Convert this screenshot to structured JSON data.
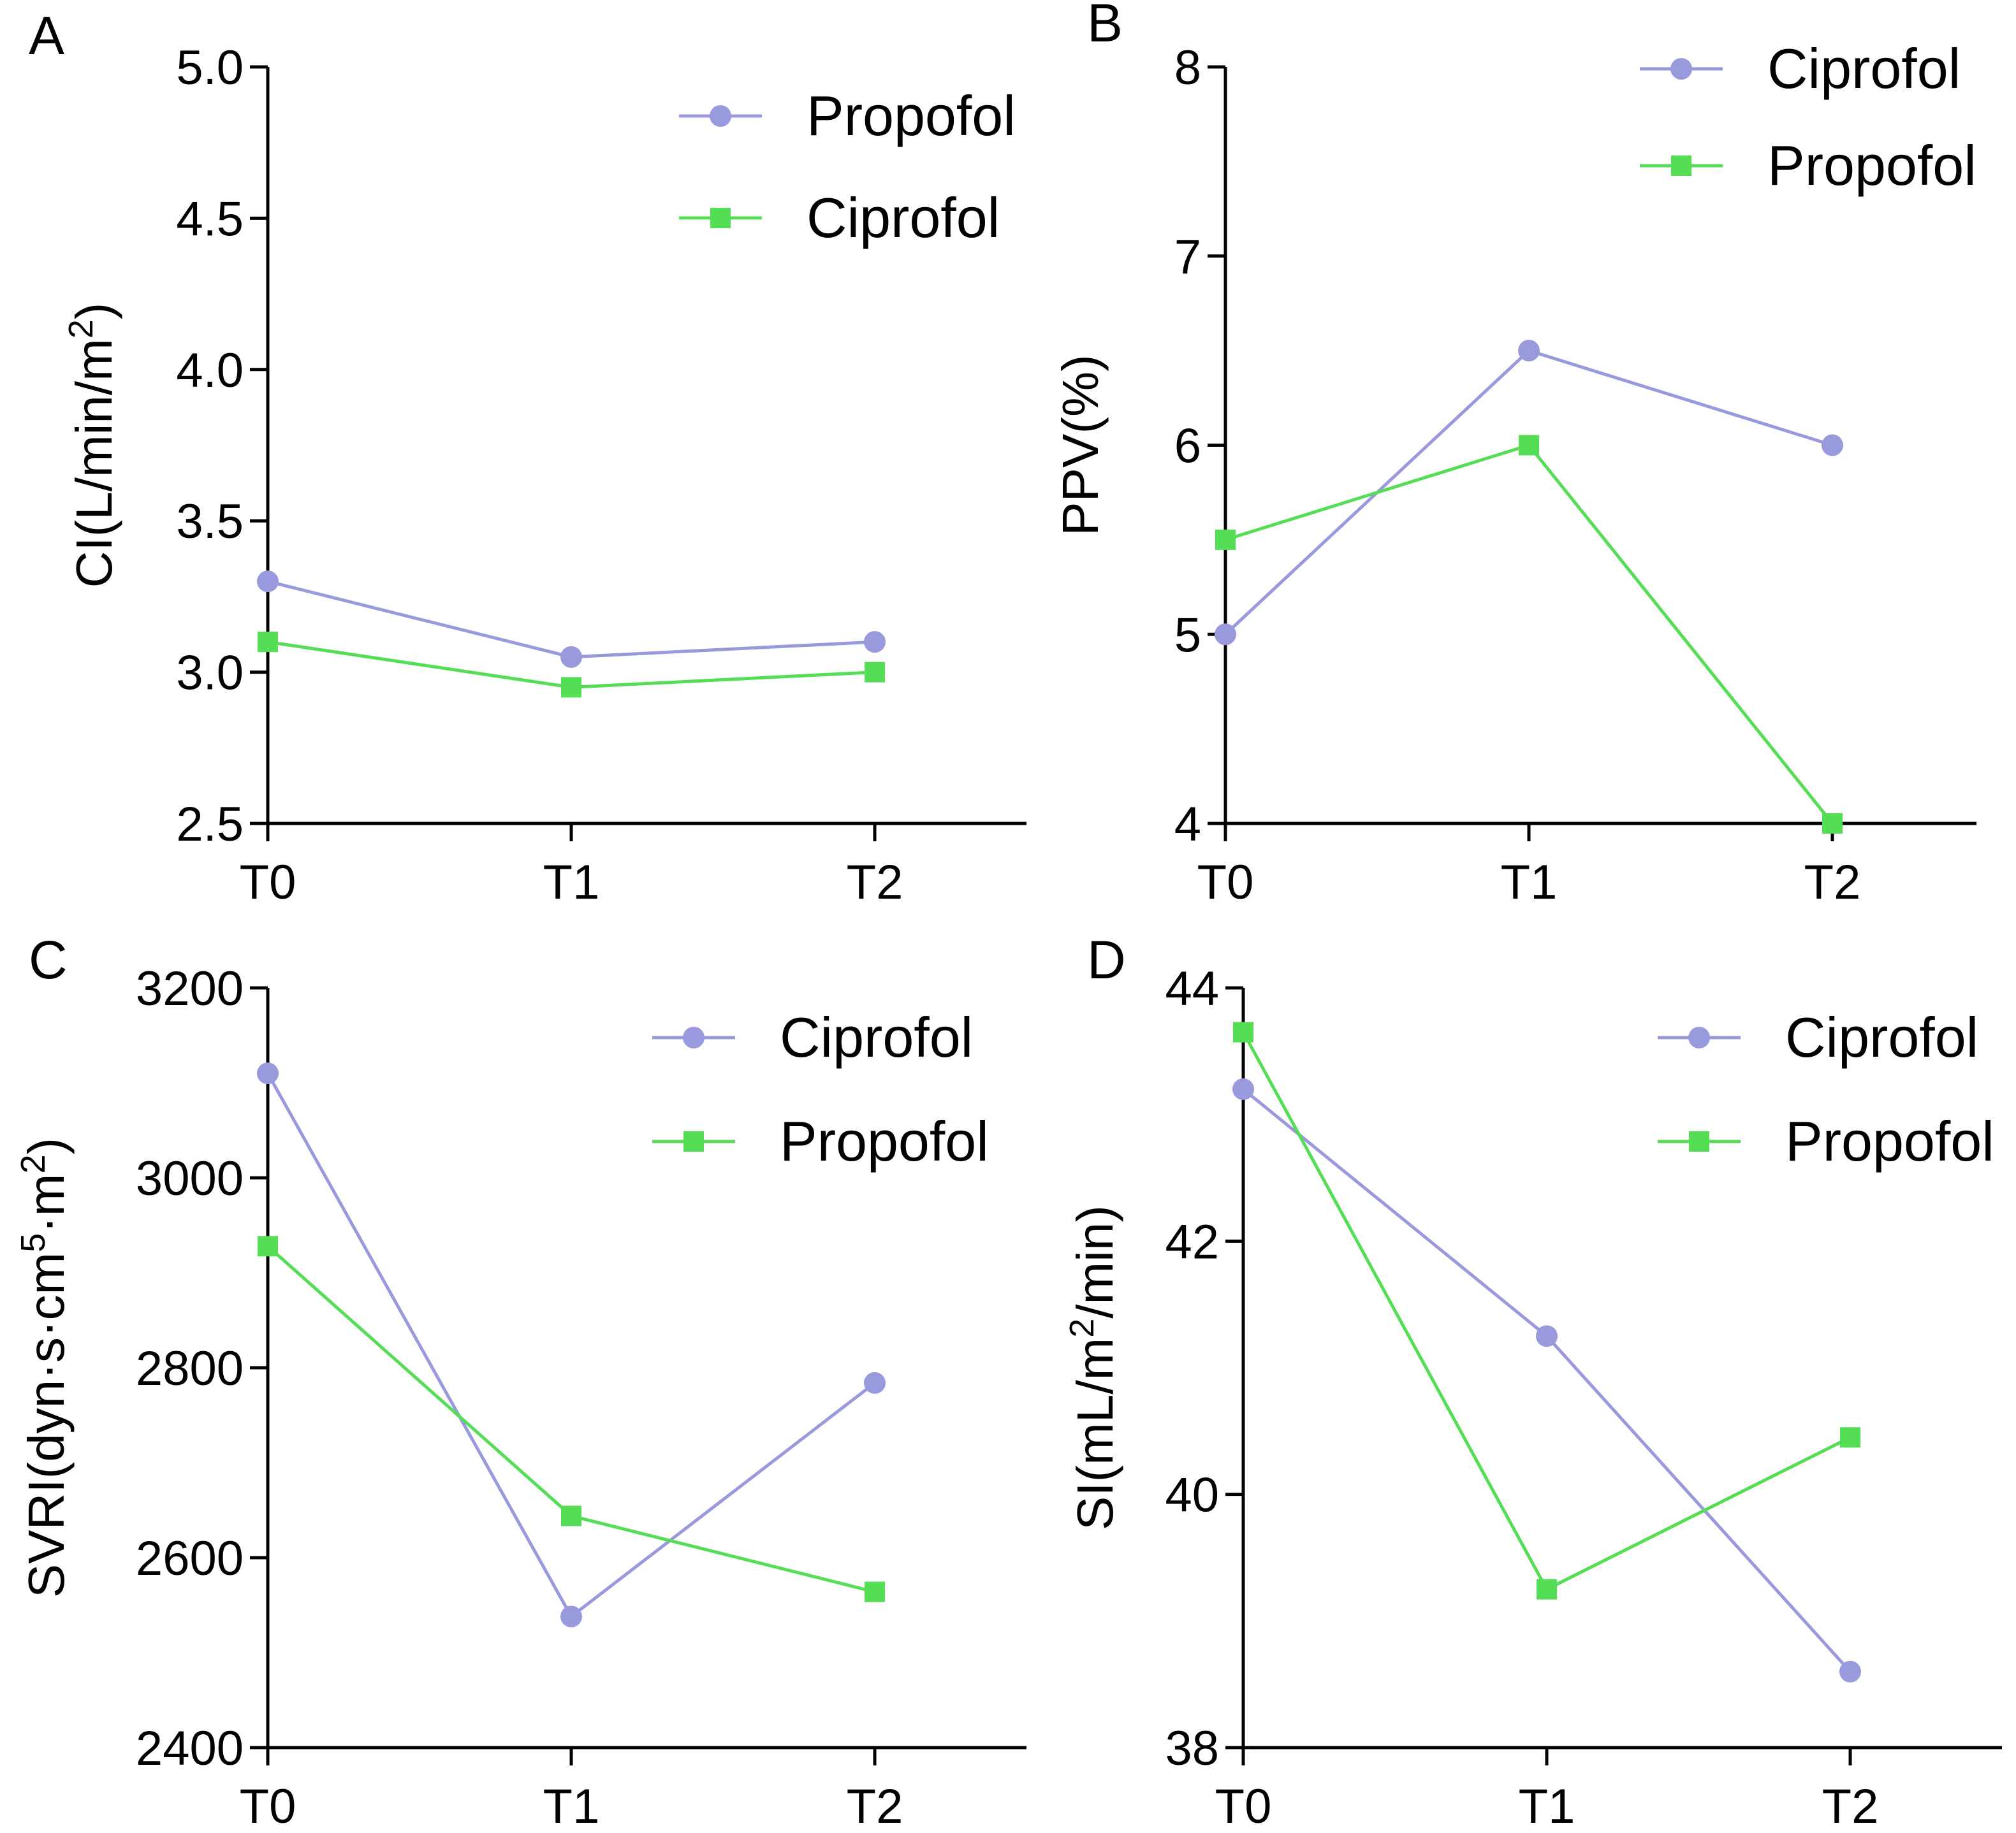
{
  "chart_data": [
    {
      "panel": "A",
      "type": "line",
      "categories": [
        "T0",
        "T1",
        "T2"
      ],
      "ylabel_main": "CI(L/min/m",
      "ylabel_sup": "2",
      "ylabel_tail": ")",
      "ylim": [
        2.5,
        5.0
      ],
      "yticks": [
        2.5,
        3.0,
        3.5,
        4.0,
        4.5,
        5.0
      ],
      "ytick_labels": [
        "2.5",
        "3.0",
        "3.5",
        "4.0",
        "4.5",
        "5.0"
      ],
      "series": [
        {
          "name": "Propofol",
          "marker": "circle",
          "color": "#9999dd",
          "values": [
            3.3,
            3.05,
            3.1
          ]
        },
        {
          "name": "Ciprofol",
          "marker": "square",
          "color": "#55dd55",
          "values": [
            3.1,
            2.95,
            3.0
          ]
        }
      ]
    },
    {
      "panel": "B",
      "type": "line",
      "categories": [
        "T0",
        "T1",
        "T2"
      ],
      "ylabel_main": "PPV(%)",
      "ylabel_sup": "",
      "ylabel_tail": "",
      "ylim": [
        4,
        8
      ],
      "yticks": [
        4,
        5,
        6,
        7,
        8
      ],
      "ytick_labels": [
        "4",
        "5",
        "6",
        "7",
        "8"
      ],
      "series": [
        {
          "name": "Ciprofol",
          "marker": "circle",
          "color": "#9999dd",
          "values": [
            5.0,
            6.5,
            6.0
          ]
        },
        {
          "name": "Propofol",
          "marker": "square",
          "color": "#55dd55",
          "values": [
            5.5,
            6.0,
            4.0
          ]
        }
      ]
    },
    {
      "panel": "C",
      "type": "line",
      "categories": [
        "T0",
        "T1",
        "T2"
      ],
      "ylabel_main": "SVRI(dyn·s·cm",
      "ylabel_sup": "5",
      "ylabel_tail": "·m",
      "ylabel_sup2": "2",
      "ylabel_tail2": ")",
      "ylim": [
        2400,
        3200
      ],
      "yticks": [
        2400,
        2600,
        2800,
        3000,
        3200
      ],
      "ytick_labels": [
        "2400",
        "2600",
        "2800",
        "3000",
        "3200"
      ],
      "series": [
        {
          "name": "Ciprofol",
          "marker": "circle",
          "color": "#9999dd",
          "values": [
            3110,
            2538,
            2784
          ]
        },
        {
          "name": "Propofol",
          "marker": "square",
          "color": "#55dd55",
          "values": [
            2928,
            2644,
            2564
          ]
        }
      ]
    },
    {
      "panel": "D",
      "type": "line",
      "categories": [
        "T0",
        "T1",
        "T2"
      ],
      "ylabel_main": "SI(mL/m",
      "ylabel_sup": "2",
      "ylabel_tail": "/min)",
      "ylim": [
        38,
        44
      ],
      "yticks": [
        38,
        40,
        42,
        44
      ],
      "ytick_labels": [
        "38",
        "40",
        "42",
        "44"
      ],
      "series": [
        {
          "name": "Ciprofol",
          "marker": "circle",
          "color": "#9999dd",
          "values": [
            43.2,
            41.25,
            38.6
          ]
        },
        {
          "name": "Propofol",
          "marker": "square",
          "color": "#55dd55",
          "values": [
            43.65,
            39.25,
            40.45
          ]
        }
      ]
    }
  ]
}
